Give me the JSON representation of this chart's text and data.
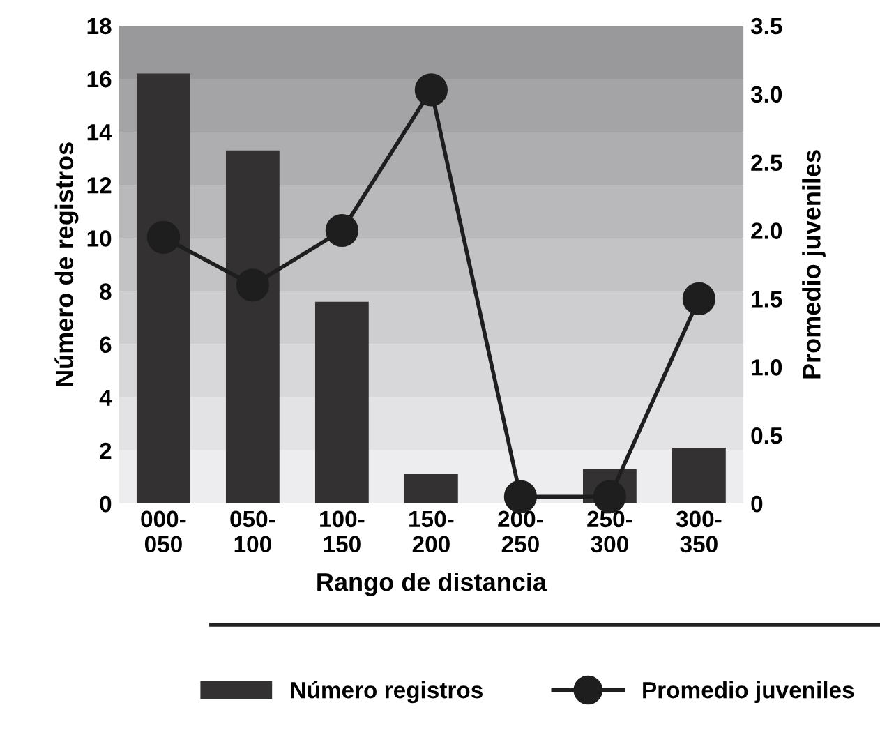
{
  "chart_data": {
    "type": "bar",
    "xlabel": "Rango de distancia",
    "ylabel": "Número de registros",
    "y2label": "Promedio juveniles",
    "categories": [
      "000-\n050",
      "050-\n100",
      "100-\n150",
      "150-\n200",
      "200-\n250",
      "250-\n300",
      "300-\n350"
    ],
    "series": [
      {
        "name": "Número registros",
        "color": "#333132",
        "values": [
          16.2,
          13.3,
          7.6,
          1.1,
          0,
          1.3,
          2.1
        ]
      },
      {
        "name": "Promedio juveniles",
        "type": "line",
        "axis": "y2",
        "color": "#1e1e1e",
        "marker": "circle",
        "values": [
          1.95,
          1.6,
          2.0,
          3.03,
          0.05,
          0.05,
          1.5
        ]
      }
    ],
    "ylim": [
      0,
      18
    ],
    "yticks": [
      0,
      2,
      4,
      6,
      8,
      10,
      12,
      14,
      16,
      18
    ],
    "y2lim": [
      0,
      3.5
    ],
    "y2ticks": [
      0,
      {
        "value": 0.5,
        "label": "0.5"
      },
      {
        "value": 1,
        "label": "1.0"
      },
      {
        "value": 1.5,
        "label": "1.5"
      },
      {
        "value": 2,
        "label": "2.0"
      },
      {
        "value": 2.5,
        "label": "2.5"
      },
      {
        "value": 3,
        "label": "3.0"
      },
      {
        "value": 3.5,
        "label": "3.5"
      }
    ],
    "legend": "bottom"
  }
}
